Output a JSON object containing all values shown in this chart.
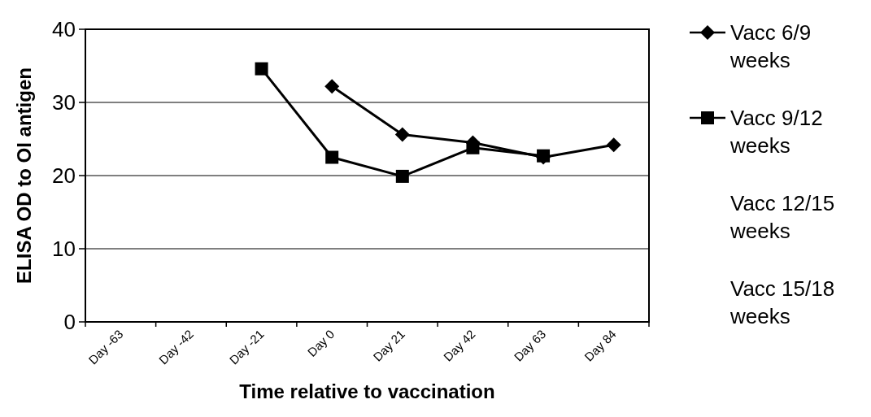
{
  "chart_data": {
    "type": "line",
    "xlabel": "Time relative to vaccination",
    "ylabel": "ELISA OD to OI antigen",
    "categories": [
      "Day -63",
      "Day -42",
      "Day -21",
      "Day 0",
      "Day 21",
      "Day 42",
      "Day 63",
      "Day 84"
    ],
    "series": [
      {
        "name": "Vacc 6/9 weeks",
        "color": "#000000",
        "marker": "diamond",
        "values": [
          null,
          null,
          null,
          32.2,
          25.6,
          24.5,
          22.5,
          24.2
        ]
      },
      {
        "name": "Vacc 9/12 weeks",
        "color": "#000000",
        "marker": "square",
        "values": [
          null,
          null,
          34.6,
          22.5,
          19.9,
          23.8,
          22.7,
          null
        ]
      },
      {
        "name": "Vacc 12/15 weeks",
        "marker": "none",
        "values": [
          null,
          null,
          null,
          null,
          null,
          null,
          null,
          null
        ]
      },
      {
        "name": "Vacc 15/18 weeks",
        "marker": "none",
        "values": [
          null,
          null,
          null,
          null,
          null,
          null,
          null,
          null
        ]
      }
    ],
    "ylim": [
      0,
      40
    ],
    "yticks": [
      0,
      10,
      20,
      30,
      40
    ],
    "grid": "y",
    "legend": "right"
  }
}
